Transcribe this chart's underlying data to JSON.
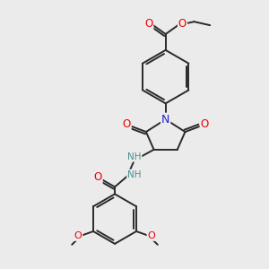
{
  "background_color": "#ebebeb",
  "bond_color": "#2a2a2a",
  "atom_colors": {
    "O": "#ee0000",
    "N": "#2222cc",
    "H": "#4a9090"
  },
  "figsize": [
    3.0,
    3.0
  ],
  "dpi": 100,
  "lw": 1.4
}
